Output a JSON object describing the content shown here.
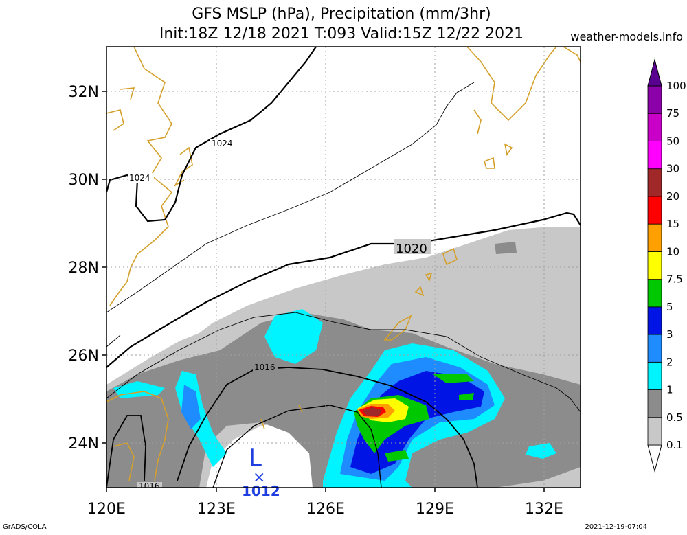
{
  "header": {
    "title_line1": "GFS MSLP (hPa), Precipitation (mm/3hr)",
    "title_line2": "Init:18Z 12/18 2021 T:093 Valid:15Z 12/22 2021",
    "website": "weather-models.info"
  },
  "footer": {
    "software": "GrADS/COLA",
    "timestamp": "2021-12-19-07:04"
  },
  "map": {
    "lon_range": [
      120,
      133
    ],
    "lat_range": [
      23,
      33
    ],
    "x_ticks": [
      "120E",
      "123E",
      "126E",
      "129E",
      "132E"
    ],
    "y_ticks": [
      "24N",
      "26N",
      "28N",
      "30N",
      "32N"
    ],
    "grid": true,
    "isobar_labels": [
      "1024",
      "1024",
      "1020",
      "1016",
      "1016"
    ],
    "low_center": {
      "symbol": "L",
      "marker": "×",
      "pressure": "1012",
      "color": "#1f3fe0"
    },
    "colors": {
      "coastline": "#d4a02a",
      "isobar": "#000000",
      "low": "#1f3fe0"
    }
  },
  "legend": {
    "levels": [
      "0.1",
      "0.5",
      "1",
      "2",
      "3",
      "5",
      "7.5",
      "10",
      "15",
      "20",
      "30",
      "50",
      "75",
      "100"
    ],
    "colors": [
      "#ffffff",
      "#c8c8c8",
      "#8c8c8c",
      "#00f4ff",
      "#1e8cff",
      "#0014e6",
      "#00c800",
      "#ffff00",
      "#ffa000",
      "#ff0000",
      "#a02828",
      "#ff00ff",
      "#c800c8",
      "#8c00aa",
      "#5a0090"
    ]
  }
}
